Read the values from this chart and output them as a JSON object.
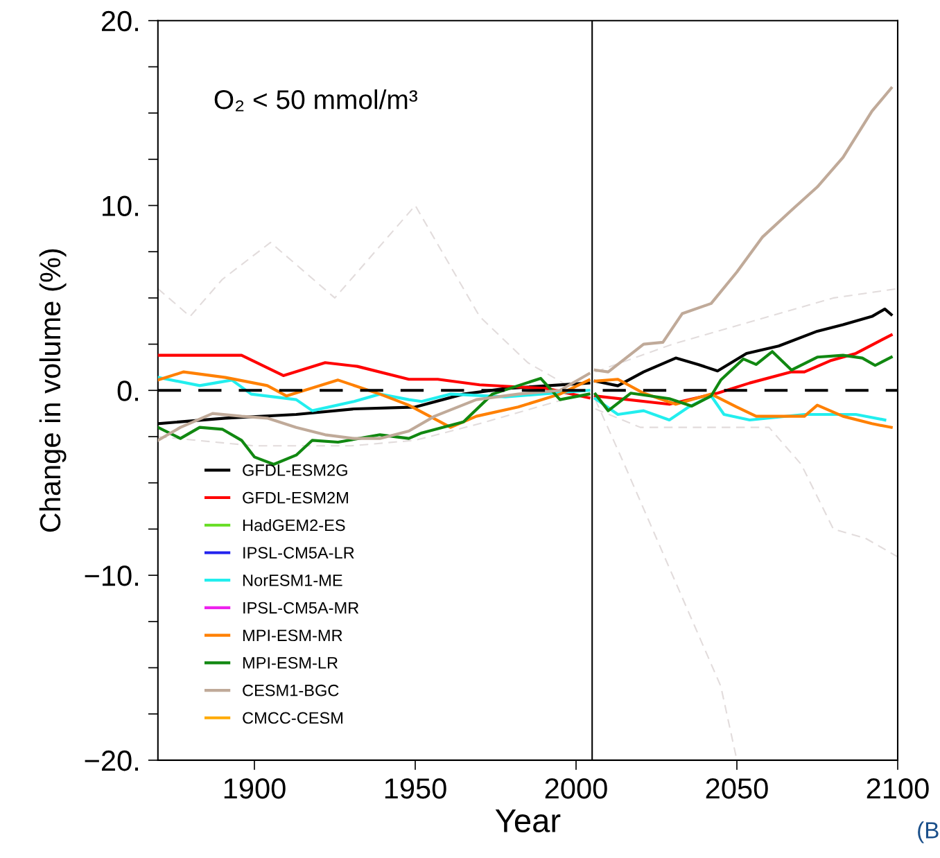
{
  "chart_data": {
    "type": "line",
    "xlabel": "Year",
    "ylabel": "Change in volume (%)",
    "annotations": [
      "O₂ < 50 mmol/m³",
      "(B"
    ],
    "xlim": [
      1870,
      2100
    ],
    "ylim": [
      -20,
      20
    ],
    "xticks": [
      1900,
      1950,
      2000,
      2050,
      2100
    ],
    "yticks": [
      {
        "value": -20,
        "label": "−20."
      },
      {
        "value": -17.5,
        "label": null
      },
      {
        "value": -15,
        "label": null
      },
      {
        "value": -12.5,
        "label": null
      },
      {
        "value": -10,
        "label": "−10."
      },
      {
        "value": -7.5,
        "label": null
      },
      {
        "value": -5,
        "label": null
      },
      {
        "value": -2.5,
        "label": null
      },
      {
        "value": 0,
        "label": "0."
      },
      {
        "value": 2.5,
        "label": null
      },
      {
        "value": 5,
        "label": null
      },
      {
        "value": 7.5,
        "label": null
      },
      {
        "value": 10,
        "label": "10."
      },
      {
        "value": 12.5,
        "label": null
      },
      {
        "value": 15,
        "label": null
      },
      {
        "value": 17.5,
        "label": null
      },
      {
        "value": 20,
        "label": "20."
      }
    ],
    "grid": false,
    "legend": "bottom left",
    "line_style": "solid",
    "marker": "none",
    "ref_lines": [
      {
        "axis": "y",
        "value": 0,
        "label": null,
        "color": "#000000",
        "line_style": "dashed"
      },
      {
        "axis": "x",
        "value": 2005,
        "label": null,
        "color": "#000000",
        "line_style": "solid"
      }
    ],
    "series": [
      {
        "color": "#e2dcdc",
        "line_style": "dashed",
        "x": [
          1870,
          1880,
          1890,
          1905,
          1915,
          1925,
          1935,
          1950,
          1960,
          1970,
          1985,
          2000
        ],
        "values": [
          5.5,
          4,
          6,
          8,
          6.5,
          5,
          7,
          10,
          7,
          4,
          1.5,
          0
        ]
      },
      {
        "color": "#e2dcdc",
        "line_style": "dashed",
        "x": [
          2006,
          2015,
          2025,
          2035,
          2045,
          2050
        ],
        "values": [
          -0.5,
          -4,
          -8,
          -12,
          -16,
          -20
        ]
      },
      {
        "color": "#e2dcdc",
        "line_style": "dashed",
        "x": [
          2006,
          2020,
          2040,
          2060,
          2070,
          2080,
          2090,
          2100
        ],
        "values": [
          -1,
          -2,
          -2,
          -2,
          -4,
          -7.5,
          -8,
          -9
        ]
      },
      {
        "color": "#e2dcdc",
        "line_style": "dashed",
        "x": [
          2006,
          2030,
          2060,
          2080,
          2100
        ],
        "values": [
          1,
          2.5,
          4,
          5,
          5.5
        ]
      },
      {
        "color": "#e2dcdc",
        "line_style": "dashed",
        "x": [
          1870,
          1900,
          1930,
          1950,
          1970,
          2000
        ],
        "values": [
          -2.5,
          -3,
          -3,
          -2.7,
          -1.8,
          -0.3
        ]
      },
      {
        "name": "GFDL-ESM2G",
        "color": "#000000",
        "x": [
          1870,
          1891,
          1913,
          1931,
          1950,
          1965,
          1978,
          2004,
          2005,
          2006,
          2013,
          2021,
          2031,
          2038,
          2044,
          2053,
          2063,
          2075,
          2083,
          2092,
          2096,
          2098
        ],
        "values": [
          -1.8,
          -1.5,
          -1.3,
          -1.0,
          -0.9,
          -0.2,
          0.1,
          0.4,
          null,
          0.5,
          0.25,
          1.0,
          1.75,
          1.4,
          1.05,
          2.0,
          2.4,
          3.2,
          3.55,
          4.0,
          4.4,
          4.1
        ]
      },
      {
        "name": "GFDL-ESM2M",
        "color": "#ff0000",
        "x": [
          1870,
          1896,
          1909,
          1922,
          1932,
          1948,
          1957,
          1970,
          1991,
          2004,
          2005,
          2006,
          2029,
          2044,
          2054,
          2067,
          2071,
          2079,
          2087,
          2098
        ],
        "values": [
          1.9,
          1.9,
          0.8,
          1.5,
          1.3,
          0.6,
          0.6,
          0.3,
          0.1,
          -0.4,
          null,
          -0.3,
          -0.75,
          -0.15,
          0.4,
          1.0,
          1.0,
          1.6,
          2.0,
          3.0
        ]
      },
      {
        "name": "HadGEM2-ES",
        "color": "#66dd22"
      },
      {
        "name": "IPSL-CM5A-LR",
        "color": "#2222ee"
      },
      {
        "name": "NorESM1-ME",
        "color": "#22eeee",
        "x": [
          1870,
          1883,
          1893,
          1899,
          1913,
          1918,
          1931,
          1939,
          1948,
          1952,
          1961,
          1978,
          2004,
          2005,
          2006,
          2013,
          2021,
          2029,
          2035,
          2042,
          2046,
          2054,
          2071,
          2087,
          2096
        ],
        "values": [
          0.7,
          0.26,
          0.56,
          -0.2,
          -0.5,
          -1.1,
          -0.6,
          -0.2,
          -0.5,
          -0.6,
          -0.2,
          -0.35,
          0,
          null,
          -0.45,
          -1.3,
          -1.1,
          -1.6,
          -0.9,
          -0.3,
          -1.3,
          -1.6,
          -1.3,
          -1.3,
          -1.6
        ]
      },
      {
        "name": "IPSL-CM5A-MR",
        "color": "#ee22ee"
      },
      {
        "name": "MPI-ESM-MR",
        "color": "#ff8000",
        "x": [
          1870,
          1878,
          1891,
          1904,
          1910,
          1926,
          1939,
          1948,
          1961,
          1969,
          1982,
          1995,
          2004,
          2005,
          2006,
          2013,
          2021,
          2031,
          2042,
          2050,
          2056,
          2071,
          2075,
          2083,
          2092,
          2098
        ],
        "values": [
          0.56,
          1.0,
          0.7,
          0.26,
          -0.3,
          0.56,
          -0.2,
          -0.8,
          -2.0,
          -1.4,
          -0.9,
          -0.2,
          0.56,
          null,
          0.5,
          0.6,
          -0.15,
          -0.75,
          -0.2,
          -0.9,
          -1.4,
          -1.4,
          -0.8,
          -1.4,
          -1.8,
          -2.0
        ]
      },
      {
        "name": "MPI-ESM-LR",
        "color": "#118811",
        "x": [
          1870,
          1877,
          1883,
          1890,
          1896,
          1900,
          1906,
          1913,
          1918,
          1926,
          1939,
          1948,
          1952,
          1965,
          1974,
          1989,
          1995,
          2004,
          2005,
          2006,
          2010,
          2017,
          2029,
          2036,
          2042,
          2045,
          2052,
          2056,
          2061,
          2067,
          2075,
          2083,
          2089,
          2093,
          2098
        ],
        "values": [
          -2.0,
          -2.6,
          -2.0,
          -2.1,
          -2.7,
          -3.6,
          -4.0,
          -3.5,
          -2.7,
          -2.8,
          -2.4,
          -2.6,
          -2.3,
          -1.7,
          -0.2,
          0.65,
          -0.5,
          -0.2,
          null,
          -0.2,
          -1.1,
          -0.15,
          -0.45,
          -0.85,
          -0.3,
          0.56,
          1.7,
          1.4,
          2.1,
          1.1,
          1.8,
          1.9,
          1.75,
          1.35,
          1.8
        ]
      },
      {
        "name": "CESM1-BGC",
        "color": "#c0aa99",
        "x": [
          1870,
          1877,
          1887,
          1896,
          1904,
          1913,
          1922,
          1931,
          1939,
          1948,
          1956,
          1969,
          1982,
          1995,
          2004,
          2005,
          2006,
          2010,
          2021,
          2027,
          2033,
          2042,
          2050,
          2058,
          2067,
          2075,
          2083,
          2092,
          2098
        ],
        "values": [
          -2.7,
          -2.0,
          -1.25,
          -1.4,
          -1.5,
          -2.0,
          -2.4,
          -2.6,
          -2.6,
          -2.2,
          -1.4,
          -0.5,
          -0.2,
          0,
          0.9,
          null,
          1.1,
          1.0,
          2.5,
          2.6,
          4.15,
          4.7,
          6.4,
          8.3,
          9.75,
          11.0,
          12.6,
          15.1,
          16.35
        ]
      },
      {
        "name": "CMCC-CESM",
        "color": "#ffaa00"
      }
    ]
  }
}
